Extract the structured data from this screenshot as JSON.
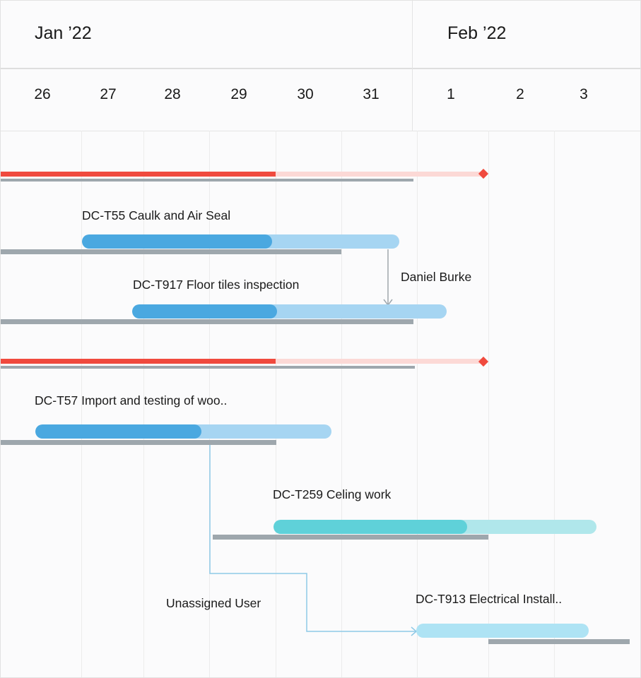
{
  "timeline": {
    "months": [
      "Jan ’22",
      "Feb ’22"
    ],
    "days": [
      "26",
      "27",
      "28",
      "29",
      "30",
      "31",
      "1",
      "2",
      "3"
    ]
  },
  "colors": {
    "milestone": "#f04a3e",
    "milestone_remaining": "#fcd9d6",
    "task_done": "#4aa8e0",
    "task_remaining": "#a6d5f2",
    "teal_done": "#5fd1d9",
    "teal_remaining": "#b0e7eb",
    "cyan_task": "#aee3f4",
    "baseline": "#9ea7ad",
    "connector": "#8ec9e6"
  },
  "tasks": [
    {
      "label": "",
      "type": "milestone",
      "progress": 0.57
    },
    {
      "label": "DC-T55 Caulk and Air Seal",
      "type": "task",
      "progress": 0.6
    },
    {
      "label": "DC-T917  Floor tiles inspection",
      "type": "task",
      "progress": 0.46
    },
    {
      "label": "",
      "type": "milestone",
      "progress": 0.57
    },
    {
      "label": "DC-T57 Import and testing of woo..",
      "type": "task",
      "progress": 0.56
    },
    {
      "label": "DC-T259 Celing work",
      "type": "task",
      "progress": 0.6
    },
    {
      "label": "DC-T913 Electrical Install..",
      "type": "task",
      "progress": 0
    }
  ],
  "assignees": {
    "dependency_1": "Daniel Burke",
    "dependency_2": "Unassigned User"
  }
}
